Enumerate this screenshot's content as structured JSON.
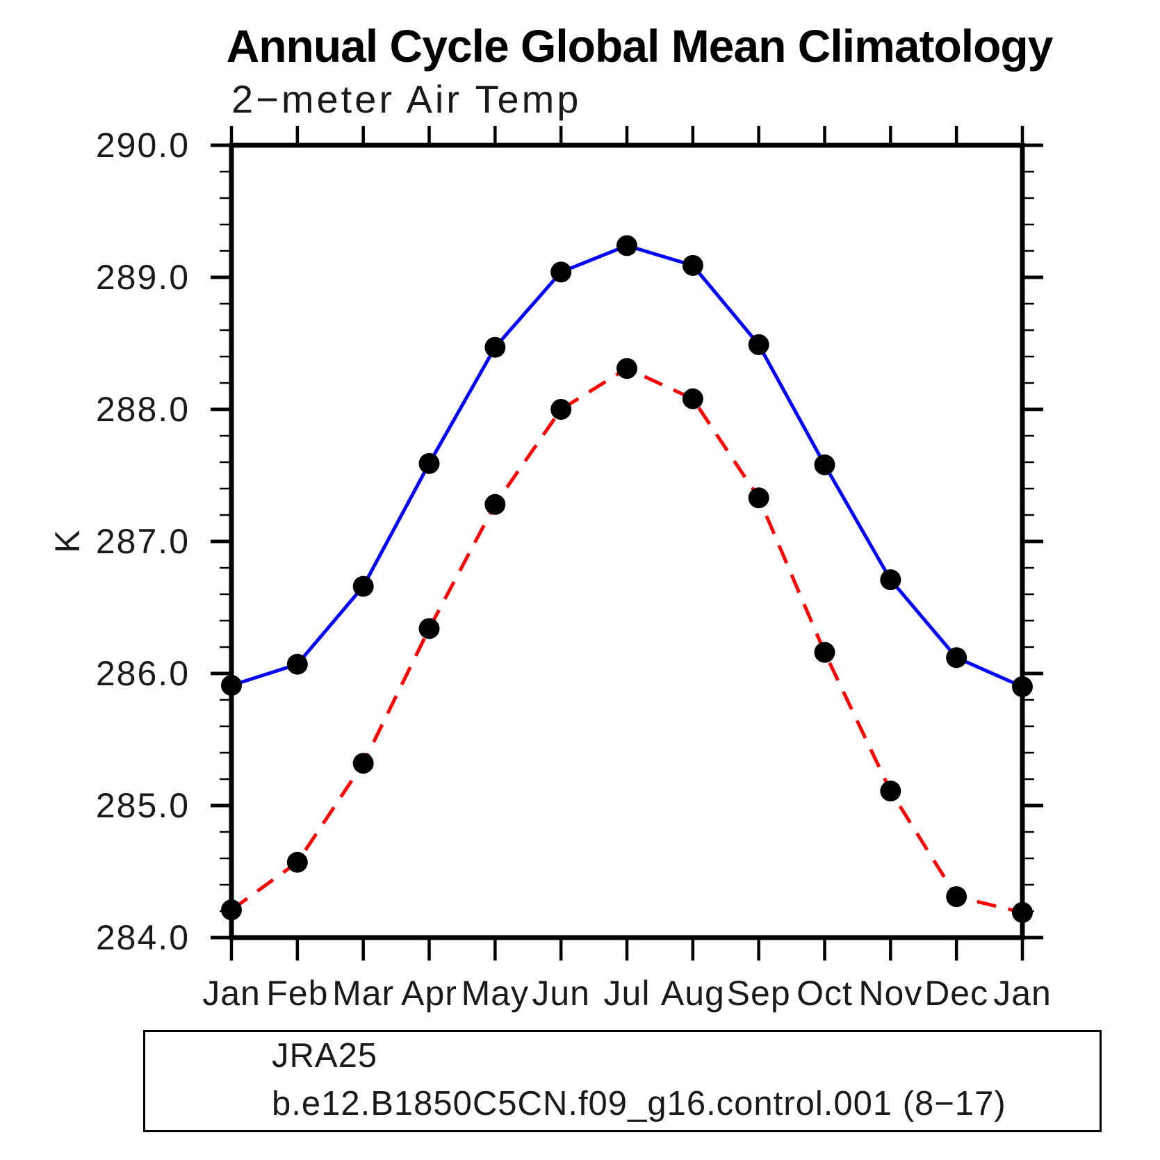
{
  "chart": {
    "title": "Annual Cycle Global Mean Climatology",
    "subtitle": "2−meter Air Temp",
    "ylabel": "K"
  },
  "chart_data": {
    "type": "line",
    "categories": [
      "Jan",
      "Feb",
      "Mar",
      "Apr",
      "May",
      "Jun",
      "Jul",
      "Aug",
      "Sep",
      "Oct",
      "Nov",
      "Dec",
      "Jan"
    ],
    "series": [
      {
        "name": "JRA25",
        "color": "#0000ff",
        "line_style": "solid",
        "marker": "filled-circle",
        "marker_color": "#000000",
        "values": [
          285.91,
          286.07,
          286.66,
          287.59,
          288.47,
          289.04,
          289.24,
          289.09,
          288.49,
          287.58,
          286.71,
          286.12,
          285.9
        ]
      },
      {
        "name": "b.e12.B1850C5CN.f09_g16.control.001 (8−17)",
        "color": "#ff0000",
        "line_style": "dashed",
        "marker": "filled-circle",
        "marker_color": "#000000",
        "values": [
          284.21,
          284.57,
          285.32,
          286.34,
          287.28,
          288.0,
          288.31,
          288.08,
          287.33,
          286.16,
          285.11,
          284.31,
          284.19
        ]
      }
    ],
    "ylim": [
      284.0,
      290.0
    ],
    "ytick_major_step": 1.0,
    "ytick_minor_step": 0.2,
    "ytick_labels": [
      "290.0",
      "289.0",
      "288.0",
      "287.0",
      "286.0",
      "285.0",
      "284.0"
    ],
    "xlabel": "",
    "ylabel": "K",
    "grid": false,
    "legend_position": "bottom-left"
  },
  "legend": {
    "entries": [
      {
        "label": "JRA25"
      },
      {
        "label": "b.e12.B1850C5CN.f09_g16.control.001 (8−17)"
      }
    ]
  }
}
